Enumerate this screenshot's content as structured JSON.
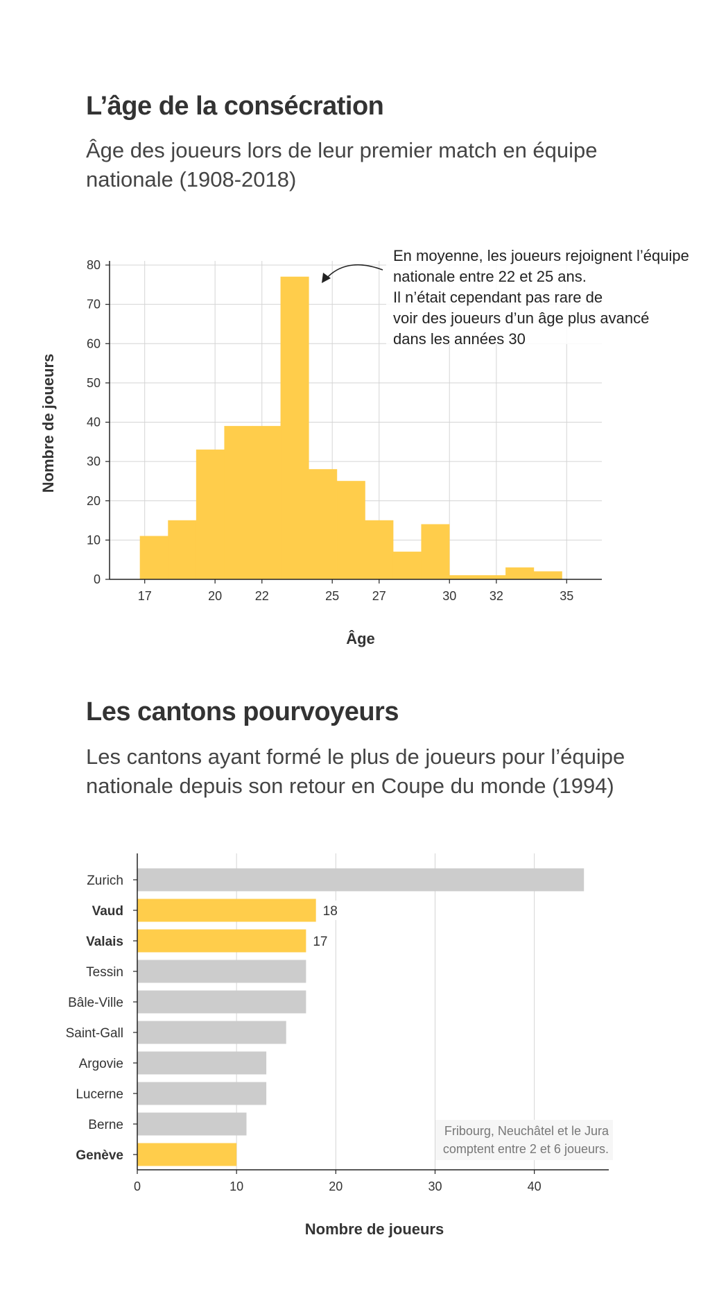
{
  "chart_data": [
    {
      "type": "bar",
      "title": "L’âge de la consécration",
      "subtitle": "Âge des joueurs lors de leur premier match en équipe nationale (1908-2018)",
      "xlabel": "Âge",
      "ylabel": "Nombre de joueurs",
      "bin_edges": [
        16.8,
        18,
        19.2,
        20.4,
        21.6,
        22.8,
        24,
        25.2,
        26.4,
        27.6,
        28.8,
        30,
        31.2,
        32.4,
        33.6,
        34.8
      ],
      "values": [
        11,
        15,
        33,
        39,
        39,
        77,
        28,
        25,
        15,
        7,
        14,
        1,
        1,
        3,
        2
      ],
      "xticks": [
        17,
        20,
        22,
        25,
        27,
        30,
        32,
        35
      ],
      "yticks": [
        0,
        10,
        20,
        30,
        40,
        50,
        60,
        70,
        80
      ],
      "xlim": [
        15.5,
        36.5
      ],
      "ylim": [
        0,
        80
      ],
      "grid": true,
      "bar_color": "#FFCD4B",
      "annotation": [
        "En moyenne, les joueurs rejoignent l’équipe",
        "nationale entre 22 et 25 ans.",
        "Il n’était cependant pas rare de",
        "voir des joueurs d’un âge plus avancé",
        "dans les années 30"
      ]
    },
    {
      "type": "bar",
      "orientation": "horizontal",
      "title": "Les cantons pourvoyeurs",
      "subtitle": "Les cantons ayant formé le plus de joueurs pour l’équipe nationale depuis son retour en Coupe du monde (1994)",
      "xlabel": "Nombre de joueurs",
      "categories": [
        "Zurich",
        "Vaud",
        "Valais",
        "Tessin",
        "Bâle-Ville",
        "Saint-Gall",
        "Argovie",
        "Lucerne",
        "Berne",
        "Genève"
      ],
      "values": [
        45,
        18,
        17,
        17,
        17,
        15,
        13,
        13,
        11,
        10
      ],
      "highlighted": [
        false,
        true,
        true,
        false,
        false,
        false,
        false,
        false,
        false,
        true
      ],
      "data_labels": [
        "",
        "18",
        "17",
        "",
        "",
        "",
        "",
        "",
        "",
        ""
      ],
      "xticks": [
        0,
        10,
        20,
        30,
        40
      ],
      "xlim": [
        0,
        47.5
      ],
      "grid": true,
      "highlight_color": "#FFCD4B",
      "default_color": "#CCCCCC",
      "annotation": [
        "Fribourg, Neuchâtel et le Jura",
        "comptent entre 2 et 6 joueurs."
      ]
    }
  ]
}
